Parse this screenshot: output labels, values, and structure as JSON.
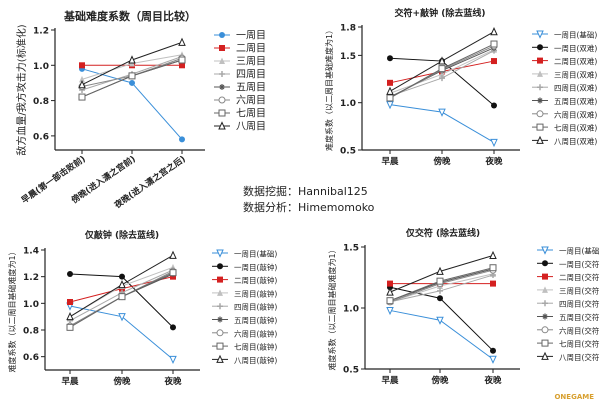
{
  "credits": {
    "mining": "数据挖掘：Hannibal125",
    "analysis": "数据分析：Himemomoko"
  },
  "watermark": "ONEGAME",
  "styles": [
    {
      "color": "#3a8fd9",
      "marker": "circle-filled"
    },
    {
      "color": "#d42020",
      "marker": "square-filled"
    },
    {
      "color": "#c0c0c0",
      "marker": "triangle-filled"
    },
    {
      "color": "#a8a8a8",
      "marker": "plus"
    },
    {
      "color": "#555555",
      "marker": "star"
    },
    {
      "color": "#888888",
      "marker": "circle-open"
    },
    {
      "color": "#666666",
      "marker": "square-open"
    },
    {
      "color": "#222222",
      "marker": "triangle-open"
    }
  ],
  "styles_alt": [
    {
      "color": "#3a8fd9",
      "marker": "triangle-down-open"
    },
    {
      "color": "#111111",
      "marker": "circle-filled"
    },
    {
      "color": "#d42020",
      "marker": "square-filled"
    },
    {
      "color": "#c0c0c0",
      "marker": "triangle-filled"
    },
    {
      "color": "#a8a8a8",
      "marker": "plus"
    },
    {
      "color": "#555555",
      "marker": "star"
    },
    {
      "color": "#888888",
      "marker": "circle-open"
    },
    {
      "color": "#666666",
      "marker": "square-open"
    },
    {
      "color": "#222222",
      "marker": "triangle-open"
    }
  ],
  "chart_data": [
    {
      "type": "line",
      "title": "基础难度系数（周目比较）",
      "ylabel": "敌方血量/我方攻击力(标准化)",
      "categories": [
        "早晨(第一部击败前)",
        "傍晚(进入潇之宫前)",
        "夜晚(进入潇之宫之后)"
      ],
      "ylim": [
        0.52,
        1.2
      ],
      "yticks": [
        0.6,
        0.8,
        1.0,
        1.2
      ],
      "legend": "right",
      "series": [
        {
          "name": "一周目",
          "values": [
            0.98,
            0.9,
            0.58
          ]
        },
        {
          "name": "二周目",
          "values": [
            1.0,
            1.0,
            1.0
          ]
        },
        {
          "name": "三周目",
          "values": [
            0.92,
            1.01,
            1.06
          ]
        },
        {
          "name": "四周目",
          "values": [
            0.86,
            0.95,
            1.05
          ]
        },
        {
          "name": "五周目",
          "values": [
            0.82,
            0.94,
            1.03
          ]
        },
        {
          "name": "六周目",
          "values": [
            0.88,
            0.94,
            1.04
          ]
        },
        {
          "name": "七周目",
          "values": [
            0.82,
            0.94,
            1.03
          ]
        },
        {
          "name": "八周目",
          "values": [
            0.89,
            1.03,
            1.13
          ]
        }
      ]
    },
    {
      "type": "line",
      "title": "交符+敲钟 (除去蓝线)",
      "ylabel": "难度系数（以二周目基础难度为1）",
      "categories": [
        "早晨",
        "傍晚",
        "夜晚"
      ],
      "ylim": [
        0.5,
        1.8
      ],
      "yticks": [
        0.5,
        1.0,
        1.5,
        1.8
      ],
      "legend": "right",
      "series": [
        {
          "name": "一周目(基础)",
          "values": [
            0.98,
            0.9,
            0.58
          ]
        },
        {
          "name": "一周目(双难)",
          "values": [
            1.47,
            1.44,
            0.97
          ]
        },
        {
          "name": "二周目(双难)",
          "values": [
            1.21,
            1.33,
            1.44
          ]
        },
        {
          "name": "三周目(双难)",
          "values": [
            1.1,
            1.3,
            1.56
          ]
        },
        {
          "name": "四周目(双难)",
          "values": [
            1.07,
            1.26,
            1.55
          ]
        },
        {
          "name": "五周目(双难)",
          "values": [
            1.06,
            1.34,
            1.58
          ]
        },
        {
          "name": "六周目(双难)",
          "values": [
            1.05,
            1.35,
            1.6
          ]
        },
        {
          "name": "七周目(双难)",
          "values": [
            1.05,
            1.36,
            1.62
          ]
        },
        {
          "name": "八周目(双难)",
          "values": [
            1.12,
            1.44,
            1.75
          ]
        }
      ]
    },
    {
      "type": "line",
      "title": "仅敲钟 (除去蓝线)",
      "ylabel": "难度系数（以二周目基础难度为1）",
      "categories": [
        "早晨",
        "傍晚",
        "夜晚"
      ],
      "ylim": [
        0.5,
        1.4
      ],
      "yticks": [
        0.6,
        0.8,
        1.0,
        1.2,
        1.4
      ],
      "legend": "right",
      "series": [
        {
          "name": "一周目(基础)",
          "values": [
            0.98,
            0.9,
            0.58
          ]
        },
        {
          "name": "一周目(敲钟)",
          "values": [
            1.22,
            1.2,
            0.82
          ]
        },
        {
          "name": "二周目(敲钟)",
          "values": [
            1.01,
            1.11,
            1.2
          ]
        },
        {
          "name": "三周目(敲钟)",
          "values": [
            0.9,
            1.13,
            1.27
          ]
        },
        {
          "name": "四周目(敲钟)",
          "values": [
            0.87,
            1.08,
            1.25
          ]
        },
        {
          "name": "五周目(敲钟)",
          "values": [
            0.83,
            1.05,
            1.22
          ]
        },
        {
          "name": "六周目(敲钟)",
          "values": [
            0.83,
            1.05,
            1.24
          ]
        },
        {
          "name": "七周目(敲钟)",
          "values": [
            0.82,
            1.05,
            1.23
          ]
        },
        {
          "name": "八周目(敲钟)",
          "values": [
            0.9,
            1.14,
            1.36
          ]
        }
      ]
    },
    {
      "type": "line",
      "title": "仅交符 (除去蓝线)",
      "ylabel": "难度系数（以二周目基础难度为1）",
      "categories": [
        "早晨",
        "傍晚",
        "夜晚"
      ],
      "ylim": [
        0.5,
        1.5
      ],
      "yticks": [
        0.5,
        1.0,
        1.5
      ],
      "legend": "right",
      "series": [
        {
          "name": "一周目(基础)",
          "values": [
            0.98,
            0.9,
            0.58
          ]
        },
        {
          "name": "一周目(交符)",
          "values": [
            1.17,
            1.08,
            0.65
          ]
        },
        {
          "name": "二周目(交符)",
          "values": [
            1.2,
            1.2,
            1.2
          ]
        },
        {
          "name": "三周目(交符)",
          "values": [
            1.05,
            1.18,
            1.28
          ]
        },
        {
          "name": "四周目(交符)",
          "values": [
            1.05,
            1.14,
            1.27
          ]
        },
        {
          "name": "五周目(交符)",
          "values": [
            1.06,
            1.21,
            1.32
          ]
        },
        {
          "name": "六周目(交符)",
          "values": [
            1.05,
            1.2,
            1.31
          ]
        },
        {
          "name": "七周目(交符)",
          "values": [
            1.06,
            1.22,
            1.33
          ]
        },
        {
          "name": "八周目(交符)",
          "values": [
            1.13,
            1.3,
            1.43
          ]
        }
      ]
    }
  ]
}
